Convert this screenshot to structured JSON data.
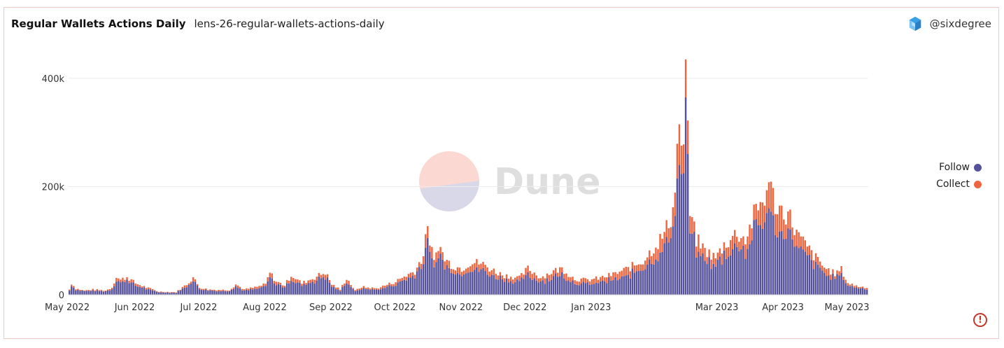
{
  "header": {
    "title": "Regular Wallets Actions Daily",
    "subtitle": "lens-26-regular-wallets-actions-daily",
    "author": "@sixdegree"
  },
  "watermark": "Dune",
  "colors": {
    "follow": "#55519a",
    "collect": "#ee6640",
    "grid": "#ececec",
    "axis_text": "#333333"
  },
  "legend": {
    "items": [
      {
        "label": "Follow",
        "color": "#55519a"
      },
      {
        "label": "Collect",
        "color": "#ee6640"
      }
    ]
  },
  "warning_icon": "exclamation-circle-icon",
  "chart_data": {
    "type": "bar",
    "stacked": true,
    "title": "Regular Wallets Actions Daily",
    "x_ticks": [
      "May 2022",
      "Jun 2022",
      "Jul 2022",
      "Aug 2022",
      "Sep 2022",
      "Oct 2022",
      "Nov 2022",
      "Dec 2022",
      "Jan 2023",
      "Mar 2023",
      "Apr 2023",
      "May 2023"
    ],
    "y_ticks": [
      "0",
      "200k",
      "400k"
    ],
    "y_tick_values": [
      0,
      200000,
      400000
    ],
    "ylim": [
      0,
      440000
    ],
    "legend_position": "right",
    "grid": true,
    "series": [
      {
        "name": "Follow",
        "color": "#55519a"
      },
      {
        "name": "Collect",
        "color": "#ee6640"
      }
    ],
    "notable_days": [
      {
        "date": "2023-02-14",
        "follow": 365000,
        "collect": 70000,
        "total": 435000
      },
      {
        "date": "2023-02-11",
        "follow": 240000,
        "collect": 75000,
        "total": 315000
      },
      {
        "date": "2023-03-25",
        "follow": 160000,
        "collect": 48000,
        "total": 208000
      },
      {
        "date": "2022-10-16",
        "follow": 105000,
        "collect": 22000,
        "total": 127000
      }
    ],
    "daily_totals_profile": [
      [
        "2022-05-01",
        10000
      ],
      [
        "2022-05-02",
        22000
      ],
      [
        "2022-05-04",
        12000
      ],
      [
        "2022-05-08",
        8000
      ],
      [
        "2022-05-12",
        10000
      ],
      [
        "2022-05-18",
        8000
      ],
      [
        "2022-05-21",
        14000
      ],
      [
        "2022-05-23",
        35000
      ],
      [
        "2022-05-25",
        28000
      ],
      [
        "2022-05-28",
        34000
      ],
      [
        "2022-06-01",
        22000
      ],
      [
        "2022-06-06",
        14000
      ],
      [
        "2022-06-12",
        6000
      ],
      [
        "2022-06-20",
        5000
      ],
      [
        "2022-06-25",
        20000
      ],
      [
        "2022-06-28",
        33000
      ],
      [
        "2022-07-01",
        14000
      ],
      [
        "2022-07-05",
        10000
      ],
      [
        "2022-07-15",
        9000
      ],
      [
        "2022-07-18",
        20000
      ],
      [
        "2022-07-22",
        10000
      ],
      [
        "2022-07-28",
        15000
      ],
      [
        "2022-08-01",
        20000
      ],
      [
        "2022-08-03",
        42000
      ],
      [
        "2022-08-06",
        25000
      ],
      [
        "2022-08-10",
        18000
      ],
      [
        "2022-08-13",
        38000
      ],
      [
        "2022-08-18",
        22000
      ],
      [
        "2022-08-25",
        35000
      ],
      [
        "2022-08-29",
        43000
      ],
      [
        "2022-09-01",
        20000
      ],
      [
        "2022-09-05",
        10000
      ],
      [
        "2022-09-08",
        32000
      ],
      [
        "2022-09-12",
        8000
      ],
      [
        "2022-09-15",
        15000
      ],
      [
        "2022-09-22",
        12000
      ],
      [
        "2022-10-01",
        25000
      ],
      [
        "2022-10-05",
        35000
      ],
      [
        "2022-10-10",
        45000
      ],
      [
        "2022-10-14",
        75000
      ],
      [
        "2022-10-16",
        127000
      ],
      [
        "2022-10-19",
        60000
      ],
      [
        "2022-10-21",
        98000
      ],
      [
        "2022-10-24",
        68000
      ],
      [
        "2022-10-28",
        55000
      ],
      [
        "2022-11-01",
        50000
      ],
      [
        "2022-11-05",
        62000
      ],
      [
        "2022-11-10",
        60000
      ],
      [
        "2022-11-15",
        48000
      ],
      [
        "2022-11-20",
        38000
      ],
      [
        "2022-11-28",
        32000
      ],
      [
        "2022-12-02",
        50000
      ],
      [
        "2022-12-08",
        33000
      ],
      [
        "2022-12-14",
        45000
      ],
      [
        "2022-12-18",
        50000
      ],
      [
        "2022-12-24",
        30000
      ],
      [
        "2022-12-30",
        28000
      ],
      [
        "2023-01-05",
        32000
      ],
      [
        "2023-01-12",
        40000
      ],
      [
        "2023-01-18",
        50000
      ],
      [
        "2023-01-25",
        65000
      ],
      [
        "2023-01-31",
        95000
      ],
      [
        "2023-02-04",
        115000
      ],
      [
        "2023-02-08",
        160000
      ],
      [
        "2023-02-10",
        270000
      ],
      [
        "2023-02-11",
        315000
      ],
      [
        "2023-02-13",
        280000
      ],
      [
        "2023-02-14",
        435000
      ],
      [
        "2023-02-16",
        155000
      ],
      [
        "2023-02-19",
        105000
      ],
      [
        "2023-02-23",
        85000
      ],
      [
        "2023-02-28",
        70000
      ],
      [
        "2023-03-04",
        95000
      ],
      [
        "2023-03-10",
        118000
      ],
      [
        "2023-03-14",
        105000
      ],
      [
        "2023-03-18",
        150000
      ],
      [
        "2023-03-22",
        180000
      ],
      [
        "2023-03-25",
        208000
      ],
      [
        "2023-03-29",
        165000
      ],
      [
        "2023-04-03",
        155000
      ],
      [
        "2023-04-08",
        110000
      ],
      [
        "2023-04-12",
        90000
      ],
      [
        "2023-04-16",
        70000
      ],
      [
        "2023-04-20",
        52000
      ],
      [
        "2023-04-25",
        40000
      ],
      [
        "2023-04-28",
        48000
      ],
      [
        "2023-05-01",
        22000
      ],
      [
        "2023-05-06",
        16000
      ],
      [
        "2023-05-10",
        14000
      ]
    ],
    "collect_share_profile": [
      [
        "2022-05-01",
        0.18
      ],
      [
        "2022-09-30",
        0.22
      ],
      [
        "2022-10-16",
        0.18
      ],
      [
        "2022-12-31",
        0.28
      ],
      [
        "2023-02-01",
        0.25
      ],
      [
        "2023-02-14",
        0.16
      ],
      [
        "2023-02-20",
        0.22
      ],
      [
        "2023-03-25",
        0.23
      ],
      [
        "2023-05-10",
        0.2
      ]
    ]
  }
}
